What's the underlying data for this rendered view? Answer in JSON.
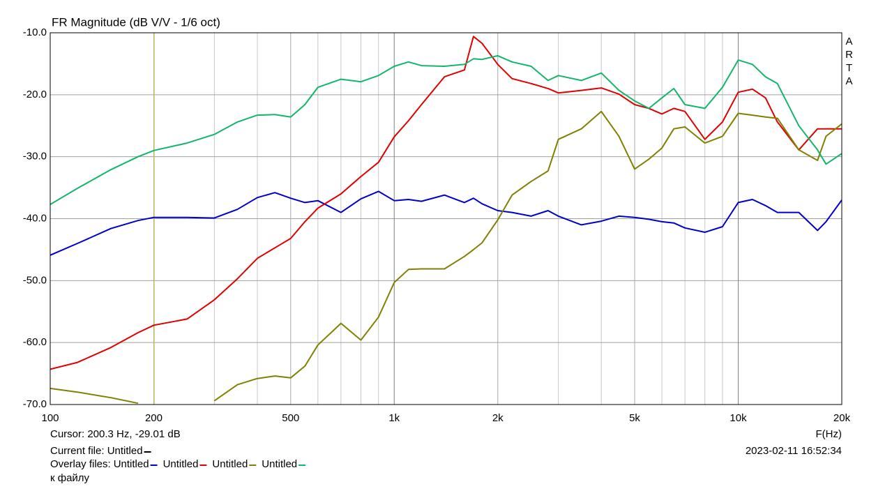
{
  "chart_data": {
    "type": "line",
    "title": "FR Magnitude (dB V/V - 1/6 oct)",
    "side_label": "ARTA",
    "x_label": "F(Hz)",
    "log_x": true,
    "grid": true,
    "xlim": [
      100,
      20000
    ],
    "ylim": [
      -70,
      -10
    ],
    "xticks": [
      100,
      200,
      500,
      {
        "value": 1000,
        "label": "1k"
      },
      {
        "value": 2000,
        "label": "2k"
      },
      {
        "value": 5000,
        "label": "5k"
      },
      {
        "value": 10000,
        "label": "10k"
      },
      {
        "value": 20000,
        "label": "20k"
      }
    ],
    "xminor": [
      300,
      400,
      600,
      700,
      800,
      900,
      3000,
      4000,
      6000,
      7000,
      8000,
      9000
    ],
    "yticks": [
      {
        "value": -10,
        "label": "-10.0"
      },
      {
        "value": -20,
        "label": "-20.0"
      },
      {
        "value": -30,
        "label": "-30.0"
      },
      {
        "value": -40,
        "label": "-40.0"
      },
      {
        "value": -50,
        "label": "-50.0"
      },
      {
        "value": -60,
        "label": "-60.0"
      },
      {
        "value": -70,
        "label": "-70.0"
      }
    ],
    "cursor_x": 200.3,
    "cursor_color": "#b8b860",
    "cursor_text": "Cursor: 200.3 Hz, -29.01 dB",
    "current_file_label": "Current file: Untitled",
    "current_file_color": "#000000",
    "overlay_label": "Overlay files:",
    "note": "к файлу",
    "timestamp": "2023-02-11  16:52:34",
    "x": [
      100,
      120,
      150,
      180,
      200,
      250,
      300,
      350,
      400,
      450,
      500,
      550,
      600,
      700,
      800,
      900,
      1000,
      1100,
      1200,
      1400,
      1600,
      1700,
      1800,
      2000,
      2200,
      2500,
      2800,
      3000,
      3500,
      4000,
      4500,
      5000,
      5500,
      6000,
      6500,
      7000,
      8000,
      9000,
      10000,
      11000,
      12000,
      13000,
      15000,
      17000,
      18000,
      20000
    ],
    "series": [
      {
        "name": "Untitled",
        "color": "#0000cc",
        "values": [
          -45.9,
          -44.0,
          -41.6,
          -40.3,
          -39.8,
          -39.8,
          -39.9,
          -38.5,
          -36.6,
          -35.8,
          -36.7,
          -37.4,
          -37.1,
          -39.0,
          -36.8,
          -35.6,
          -37.1,
          -36.9,
          -37.2,
          -36.2,
          -37.4,
          -36.7,
          -37.6,
          -38.7,
          -39.0,
          -39.6,
          -38.7,
          -39.6,
          -41.0,
          -40.4,
          -39.6,
          -39.8,
          -40.1,
          -40.5,
          -40.7,
          -41.5,
          -42.2,
          -41.3,
          -37.4,
          -36.9,
          -37.9,
          -39.0,
          -39.0,
          -41.9,
          -40.5,
          -37.0
        ]
      },
      {
        "name": "Untitled",
        "color": "#e00000",
        "values": [
          -64.3,
          -63.2,
          -60.8,
          -58.4,
          -57.2,
          -56.2,
          -53.1,
          -49.7,
          -46.4,
          -44.7,
          -43.2,
          -40.5,
          -38.3,
          -36.0,
          -33.2,
          -30.9,
          -26.8,
          -24.2,
          -21.6,
          -17.1,
          -16.0,
          -10.6,
          -11.7,
          -15.1,
          -17.4,
          -18.2,
          -19.0,
          -19.7,
          -19.3,
          -18.9,
          -19.9,
          -21.6,
          -22.2,
          -23.1,
          -22.2,
          -22.7,
          -27.2,
          -24.4,
          -19.6,
          -19.1,
          -20.5,
          -24.4,
          -28.9,
          -25.5,
          -25.5,
          -25.5
        ]
      },
      {
        "name": "Untitled",
        "color": "#808000",
        "values": [
          -67.4,
          -68.0,
          -68.9,
          -69.8,
          null,
          null,
          -69.4,
          -66.8,
          -65.8,
          -65.4,
          -65.7,
          -63.8,
          -60.4,
          -56.9,
          -59.6,
          -55.9,
          -50.3,
          -48.2,
          -48.1,
          -48.1,
          -46.1,
          -45.0,
          -43.9,
          -40.2,
          -36.2,
          -34.0,
          -32.3,
          -27.2,
          -25.5,
          -22.7,
          -26.7,
          -32.0,
          -30.4,
          -28.6,
          -25.5,
          -25.2,
          -27.8,
          -26.7,
          -23.0,
          -23.3,
          -23.6,
          -23.8,
          -28.9,
          -30.6,
          -26.7,
          -24.7
        ]
      },
      {
        "name": "Untitled",
        "color": "#13b56b",
        "values": [
          -37.7,
          -35.1,
          -32.1,
          -30.0,
          -29.0,
          -27.8,
          -26.4,
          -24.4,
          -23.3,
          -23.2,
          -23.6,
          -21.6,
          -18.8,
          -17.5,
          -17.9,
          -16.9,
          -15.4,
          -14.7,
          -15.3,
          -15.4,
          -15.1,
          -14.2,
          -14.3,
          -13.7,
          -14.7,
          -15.4,
          -17.7,
          -16.9,
          -17.7,
          -16.5,
          -19.3,
          -21.0,
          -22.2,
          -20.5,
          -19.0,
          -21.6,
          -22.2,
          -18.8,
          -14.4,
          -15.1,
          -17.1,
          -18.2,
          -25.0,
          -28.9,
          -31.2,
          -29.5
        ]
      }
    ]
  }
}
